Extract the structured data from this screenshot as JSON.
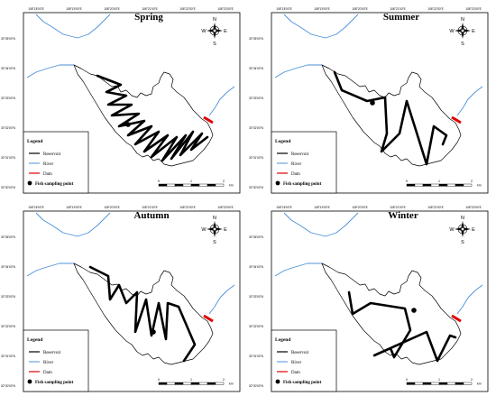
{
  "panels": [
    {
      "season": "Spring"
    },
    {
      "season": "Summer"
    },
    {
      "season": "Autumn"
    },
    {
      "season": "Winter"
    }
  ],
  "legend": {
    "title": "Legend",
    "reservoir": "Reservoir",
    "river": "River",
    "dam": "Dam",
    "sampling": "Fish sampling point"
  },
  "compass": {
    "n": "N",
    "s": "S",
    "e": "E",
    "w": "W"
  },
  "scale": {
    "zero": "0",
    "mid": "1",
    "max": "2",
    "unit": "km"
  },
  "ticks": {
    "top": [
      "108°18'00\"E",
      "108°19'00\"E",
      "108°20'00\"E",
      "108°21'00\"E",
      "108°22'00\"E",
      "108°23'00\"E"
    ],
    "left": [
      "30°35'00\"N",
      "30°34'00\"N",
      "30°33'00\"N",
      "30°32'00\"N",
      "30°31'00\"N",
      "30°30'00\"N"
    ]
  },
  "colors": {
    "river": "#4a90d9",
    "dam": "#e00000",
    "route": "#000000"
  }
}
